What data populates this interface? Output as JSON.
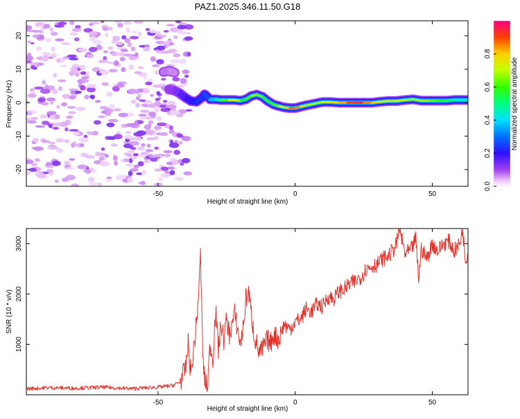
{
  "title": "PAZ1.2025.346.11.50.G18",
  "colors": {
    "snr_line": "#e8302a",
    "frame": "#000000"
  },
  "chart_data": [
    {
      "type": "heatmap",
      "name": "spectrogram",
      "xlabel": "Height of straight line (km)",
      "ylabel": "Frequency (Hz)",
      "xlim": [
        -98,
        63
      ],
      "ylim": [
        -25,
        24.5
      ],
      "x_ticks": [
        "-50",
        "0",
        "50"
      ],
      "x_tick_values": [
        -50,
        0,
        50
      ],
      "y_ticks": [
        "-20",
        "-10",
        "0",
        "10",
        "20"
      ],
      "y_tick_values": [
        -20,
        -10,
        0,
        10,
        20
      ],
      "colorbar": {
        "label": "Normalized spectral amplitude",
        "range": [
          0,
          1
        ],
        "ticks": [
          "0.0",
          "0.2",
          "0.4",
          "0.6",
          "0.8"
        ],
        "tick_values": [
          0,
          0.2,
          0.4,
          0.6,
          0.8
        ]
      },
      "noise_region_km": [
        -98,
        -40
      ],
      "ridge": [
        {
          "x": -48,
          "y": 9.2,
          "v": 0.08
        },
        {
          "x": -46,
          "y": 9.5,
          "v": 0.07
        },
        {
          "x": -44,
          "y": 9.0,
          "v": 0.06
        },
        {
          "x": -46,
          "y": 4.0,
          "v": 0.1
        },
        {
          "x": -44,
          "y": 3.6,
          "v": 0.12
        },
        {
          "x": -42,
          "y": 2.8,
          "v": 0.15
        },
        {
          "x": -40,
          "y": 1.5,
          "v": 0.18
        },
        {
          "x": -38,
          "y": 0.5,
          "v": 0.2
        },
        {
          "x": -36,
          "y": 0.3,
          "v": 0.22
        },
        {
          "x": -34,
          "y": 1.5,
          "v": 0.25
        },
        {
          "x": -33,
          "y": 2.5,
          "v": 0.22
        },
        {
          "x": -31,
          "y": 1.0,
          "v": 0.3
        },
        {
          "x": -29,
          "y": 1.0,
          "v": 0.45
        },
        {
          "x": -27,
          "y": 0.8,
          "v": 0.55
        },
        {
          "x": -24,
          "y": 0.8,
          "v": 0.7
        },
        {
          "x": -22,
          "y": 0.8,
          "v": 0.8
        },
        {
          "x": -20,
          "y": 0.6,
          "v": 0.6
        },
        {
          "x": -18,
          "y": 1.0,
          "v": 0.55
        },
        {
          "x": -16,
          "y": 2.0,
          "v": 0.65
        },
        {
          "x": -14,
          "y": 2.4,
          "v": 0.7
        },
        {
          "x": -12,
          "y": 1.8,
          "v": 0.6
        },
        {
          "x": -10,
          "y": 0.5,
          "v": 0.55
        },
        {
          "x": -8,
          "y": -0.5,
          "v": 0.6
        },
        {
          "x": -6,
          "y": -1.0,
          "v": 0.65
        },
        {
          "x": -4,
          "y": -1.4,
          "v": 0.75
        },
        {
          "x": -2,
          "y": -1.6,
          "v": 0.85
        },
        {
          "x": 0,
          "y": -1.6,
          "v": 0.9
        },
        {
          "x": 2,
          "y": -1.2,
          "v": 0.8
        },
        {
          "x": 4,
          "y": -0.8,
          "v": 0.7
        },
        {
          "x": 7,
          "y": -0.3,
          "v": 0.65
        },
        {
          "x": 10,
          "y": 0.2,
          "v": 0.7
        },
        {
          "x": 13,
          "y": 0.2,
          "v": 0.75
        },
        {
          "x": 16,
          "y": 0.0,
          "v": 0.8
        },
        {
          "x": 19,
          "y": 0.0,
          "v": 0.85
        },
        {
          "x": 22,
          "y": 0.0,
          "v": 0.95
        },
        {
          "x": 25,
          "y": 0.0,
          "v": 0.9
        },
        {
          "x": 28,
          "y": 0.0,
          "v": 0.8
        },
        {
          "x": 31,
          "y": 0.3,
          "v": 0.75
        },
        {
          "x": 34,
          "y": 0.5,
          "v": 0.7
        },
        {
          "x": 37,
          "y": 0.5,
          "v": 0.75
        },
        {
          "x": 40,
          "y": 0.8,
          "v": 0.7
        },
        {
          "x": 43,
          "y": 1.0,
          "v": 0.65
        },
        {
          "x": 46,
          "y": 0.6,
          "v": 0.7
        },
        {
          "x": 49,
          "y": 0.6,
          "v": 0.65
        },
        {
          "x": 52,
          "y": 0.6,
          "v": 0.6
        },
        {
          "x": 55,
          "y": 0.6,
          "v": 0.55
        },
        {
          "x": 58,
          "y": 0.8,
          "v": 0.5
        },
        {
          "x": 61,
          "y": 0.8,
          "v": 0.45
        },
        {
          "x": 63,
          "y": 0.8,
          "v": 0.4
        }
      ]
    },
    {
      "type": "line",
      "name": "snr",
      "xlabel": "Height of straight line (km)",
      "ylabel": "SNR (10 * v/v)",
      "xlim": [
        -98,
        63
      ],
      "ylim": [
        0,
        3300
      ],
      "x_ticks": [
        "-50",
        "0",
        "50"
      ],
      "x_tick_values": [
        -50,
        0,
        50
      ],
      "y_ticks": [
        "1000",
        "2000",
        "3000"
      ],
      "y_tick_values": [
        1000,
        2000,
        3000
      ],
      "series": [
        {
          "name": "SNR",
          "x": [
            -98,
            -90,
            -80,
            -70,
            -60,
            -50,
            -45,
            -42,
            -40,
            -39,
            -38,
            -37,
            -36,
            -35,
            -34.5,
            -34,
            -33.5,
            -33,
            -32,
            -31,
            -30,
            -29,
            -28,
            -27,
            -26,
            -25,
            -24,
            -22,
            -20,
            -19,
            -18,
            -17,
            -16,
            -15,
            -14,
            -13,
            -12,
            -11,
            -10,
            -9,
            -8,
            -6,
            -4,
            -2,
            0,
            2,
            4,
            6,
            8,
            10,
            12,
            14,
            16,
            18,
            20,
            22,
            24,
            26,
            28,
            30,
            32,
            34,
            36,
            37,
            38,
            40,
            42,
            44,
            45,
            46,
            48,
            50,
            52,
            54,
            56,
            58,
            60,
            61,
            62,
            63
          ],
          "y": [
            120,
            140,
            130,
            150,
            120,
            150,
            180,
            250,
            500,
            1000,
            400,
            900,
            1400,
            2200,
            2800,
            1500,
            600,
            300,
            120,
            1000,
            700,
            1700,
            900,
            1400,
            1100,
            1500,
            1200,
            1600,
            1000,
            1300,
            1900,
            2050,
            1600,
            1200,
            1000,
            800,
            900,
            1000,
            1100,
            1000,
            1200,
            1100,
            1400,
            1300,
            1450,
            1500,
            1700,
            1650,
            1800,
            1750,
            1950,
            1900,
            2050,
            2100,
            2200,
            2250,
            2350,
            2500,
            2550,
            2600,
            2700,
            2750,
            2900,
            3000,
            3300,
            2800,
            2850,
            3100,
            2300,
            2900,
            2700,
            3000,
            2850,
            3000,
            3050,
            2850,
            3000,
            3300,
            2700,
            2800
          ]
        }
      ]
    }
  ]
}
